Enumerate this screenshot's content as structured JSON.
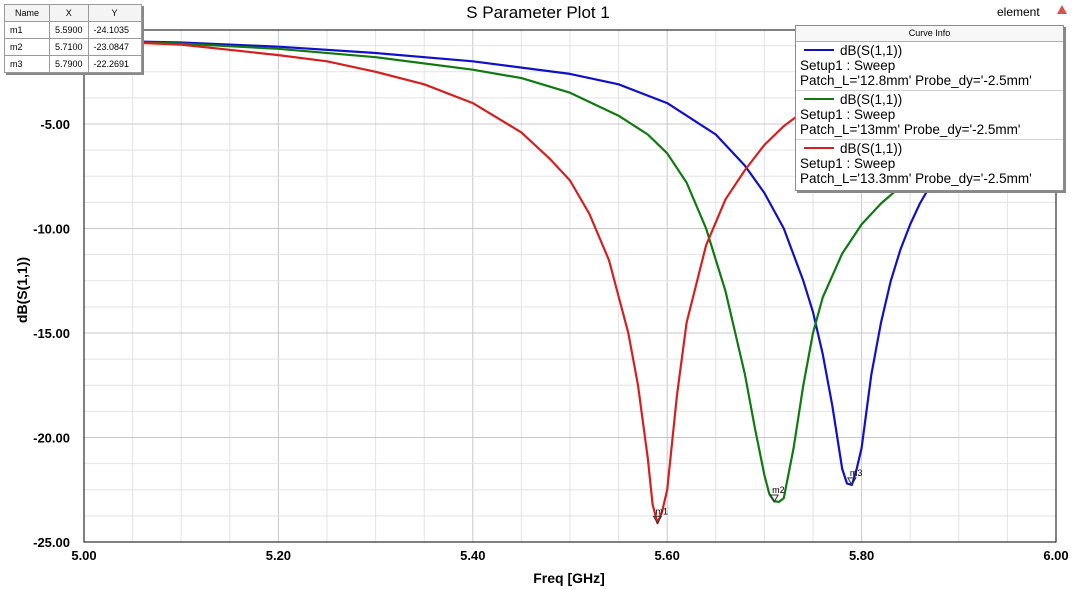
{
  "chart_data": {
    "type": "line",
    "title": "S Parameter Plot 1",
    "xlabel": "Freq [GHz]",
    "ylabel": "dB(S(1,1))",
    "xlim": [
      5.0,
      6.0
    ],
    "ylim": [
      -25.0,
      -0.5
    ],
    "x_ticks": [
      "5.00",
      "5.20",
      "5.40",
      "5.60",
      "5.80",
      "6.00"
    ],
    "y_ticks": [
      "-5.00",
      "-10.00",
      "-15.00",
      "-20.00",
      "-25.00"
    ],
    "grid": true,
    "legend_title": "Curve Info",
    "legend_position": "top-right",
    "series": [
      {
        "name": "dB(S(1,1))",
        "setup": "Setup1 : Sweep",
        "params": "Patch_L='12.8mm' Probe_dy='-2.5mm'",
        "color": "#1010c8",
        "x": [
          5.0,
          5.1,
          5.2,
          5.3,
          5.4,
          5.5,
          5.55,
          5.6,
          5.65,
          5.68,
          5.7,
          5.72,
          5.74,
          5.75,
          5.76,
          5.77,
          5.78,
          5.785,
          5.79,
          5.795,
          5.8,
          5.81,
          5.82,
          5.83,
          5.84,
          5.85,
          5.86,
          5.87,
          5.88
        ],
        "y": [
          -1.0,
          -1.1,
          -1.3,
          -1.6,
          -2.0,
          -2.6,
          -3.1,
          -4.0,
          -5.5,
          -7.0,
          -8.3,
          -10.0,
          -12.5,
          -14.0,
          -16.0,
          -18.5,
          -21.5,
          -22.2,
          -22.27,
          -21.5,
          -20.5,
          -17.0,
          -14.5,
          -12.5,
          -11.0,
          -9.8,
          -8.8,
          -8.0,
          -7.3
        ]
      },
      {
        "name": "dB(S(1,1))",
        "setup": "Setup1 : Sweep",
        "params": "Patch_L='13mm' Probe_dy='-2.5mm'",
        "color": "#107a10",
        "x": [
          5.0,
          5.1,
          5.2,
          5.3,
          5.4,
          5.45,
          5.5,
          5.55,
          5.58,
          5.6,
          5.62,
          5.64,
          5.66,
          5.68,
          5.69,
          5.7,
          5.705,
          5.71,
          5.715,
          5.72,
          5.73,
          5.74,
          5.75,
          5.76,
          5.78,
          5.8,
          5.82,
          5.84,
          5.86
        ],
        "y": [
          -1.0,
          -1.15,
          -1.4,
          -1.8,
          -2.4,
          -2.8,
          -3.5,
          -4.6,
          -5.5,
          -6.4,
          -7.8,
          -10.0,
          -13.0,
          -17.0,
          -19.5,
          -21.8,
          -22.7,
          -23.05,
          -23.08,
          -22.9,
          -20.5,
          -17.5,
          -15.0,
          -13.3,
          -11.2,
          -9.8,
          -8.8,
          -8.0,
          -7.3
        ]
      },
      {
        "name": "dB(S(1,1))",
        "setup": "Setup1 : Sweep",
        "params": "Patch_L='13.3mm' Probe_dy='-2.5mm'",
        "color": "#d42020",
        "x": [
          5.0,
          5.1,
          5.2,
          5.25,
          5.3,
          5.35,
          5.4,
          5.45,
          5.48,
          5.5,
          5.52,
          5.54,
          5.56,
          5.57,
          5.58,
          5.585,
          5.59,
          5.595,
          5.6,
          5.61,
          5.62,
          5.64,
          5.66,
          5.68,
          5.7,
          5.72,
          5.74,
          5.76,
          5.78,
          5.8
        ],
        "y": [
          -1.0,
          -1.2,
          -1.7,
          -2.0,
          -2.5,
          -3.1,
          -4.0,
          -5.4,
          -6.7,
          -7.7,
          -9.3,
          -11.5,
          -15.0,
          -17.5,
          -21.0,
          -23.2,
          -24.1,
          -23.5,
          -22.5,
          -18.0,
          -14.5,
          -10.8,
          -8.6,
          -7.2,
          -6.0,
          -5.1,
          -4.4,
          -3.8,
          -3.4,
          -3.0
        ]
      }
    ],
    "markers": [
      {
        "name": "m1",
        "x": 5.59,
        "y": -24.1035,
        "series": 2
      },
      {
        "name": "m2",
        "x": 5.71,
        "y": -23.0847,
        "series": 1
      },
      {
        "name": "m3",
        "x": 5.79,
        "y": -22.2691,
        "series": 0
      }
    ]
  },
  "marker_table": {
    "headers": [
      "Name",
      "X",
      "Y"
    ],
    "rows": [
      [
        "m1",
        "5.5900",
        "-24.1035"
      ],
      [
        "m2",
        "5.7100",
        "-23.0847"
      ],
      [
        "m3",
        "5.7900",
        "-22.2691"
      ]
    ]
  },
  "top_right_label": "element",
  "icons": {
    "top_right": "red-triangle-icon"
  }
}
